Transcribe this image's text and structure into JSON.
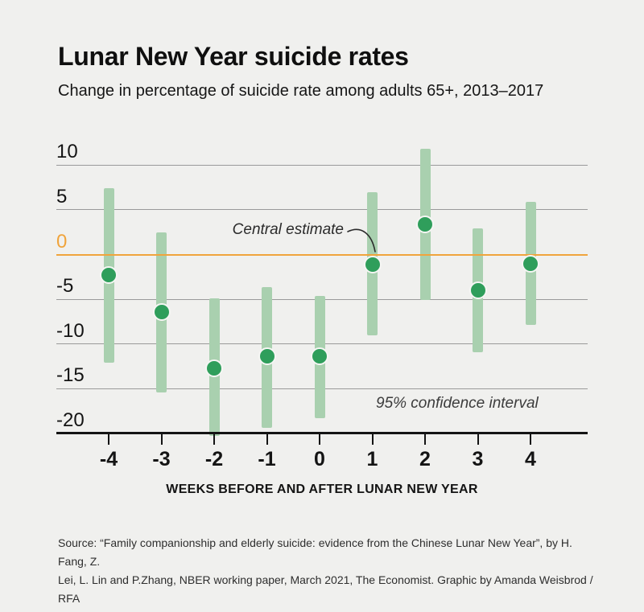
{
  "header": {
    "title": "Lunar New Year suicide rates",
    "subtitle": "Change in percentage of suicide rate among adults 65+, 2013–2017"
  },
  "chart_data": {
    "type": "scatter",
    "subtype": "central-estimate-with-95pct-confidence-intervals",
    "title": "Lunar New Year suicide rates",
    "x": [
      -4,
      -3,
      -2,
      -1,
      0,
      1,
      2,
      3,
      4
    ],
    "series": [
      {
        "name": "Central estimate",
        "values": [
          -2.3,
          -6.4,
          -12.7,
          -11.4,
          -11.4,
          -1.1,
          3.4,
          -4.0,
          -1.0
        ]
      },
      {
        "name": "95% CI upper bound",
        "values": [
          7.4,
          2.5,
          -4.9,
          -3.6,
          -4.6,
          7.0,
          11.8,
          2.9,
          5.9
        ]
      },
      {
        "name": "95% CI lower bound",
        "values": [
          -12.1,
          -15.4,
          -20.3,
          -19.4,
          -18.3,
          -9.0,
          -5.1,
          -10.9,
          -7.9
        ]
      }
    ],
    "xlabel": "WEEKS BEFORE AND AFTER LUNAR NEW YEAR",
    "ylabel": "",
    "ylim": [
      -20.5,
      12.5
    ],
    "y_ticks": [
      10,
      5,
      0,
      -5,
      -10,
      -15,
      -20
    ],
    "grid": true,
    "zero_line_highlighted": true,
    "legend_position": "none"
  },
  "annotations": {
    "central_estimate": "Central estimate",
    "confidence_interval": "95% confidence interval"
  },
  "x_axis": {
    "label": "WEEKS BEFORE AND AFTER LUNAR NEW YEAR"
  },
  "source": {
    "lines": [
      "Source: “Family companionship and elderly suicide: evidence from the Chinese Lunar New Year”, by H. Fang, Z.",
      "Lei, L. Lin and P.Zhang, NBER working paper, March 2021, The Economist. Graphic by Amanda Weisbrod / RFA"
    ]
  },
  "colors": {
    "background": "#f0f0ee",
    "accent_orange": "#f0a43c",
    "ci_bar_green": "#a9d0af",
    "dot_green": "#2f9e5b",
    "dot_ring": "#f6f6f4",
    "grid_gray": "#9a9a9a",
    "axis_black": "#141414",
    "text": "#141414"
  }
}
